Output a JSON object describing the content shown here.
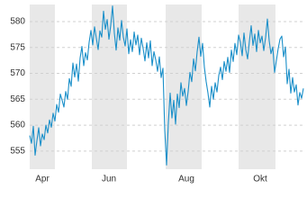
{
  "chart_data": {
    "type": "line",
    "categories": [
      null,
      null,
      null,
      null,
      null,
      null,
      null,
      "Apr",
      null,
      null,
      null,
      null,
      null,
      null,
      null,
      null,
      null,
      null,
      null,
      null,
      null,
      null,
      null,
      null,
      null,
      null,
      null,
      null,
      null,
      null,
      null,
      null,
      null,
      null,
      null,
      null,
      null,
      null,
      null,
      null,
      null,
      null,
      null,
      null,
      "Jun",
      null,
      null,
      null,
      null,
      null,
      null,
      null,
      null,
      null,
      null,
      null,
      null,
      null,
      null,
      null,
      null,
      null,
      null,
      null,
      null,
      null,
      null,
      null,
      null,
      null,
      null,
      null,
      null,
      null,
      null,
      null,
      null,
      null,
      null,
      null,
      null,
      null,
      null,
      null,
      null,
      null,
      null,
      "Aug",
      null,
      null,
      null,
      null,
      null,
      null,
      null,
      null,
      null,
      null,
      null,
      null,
      null,
      null,
      null,
      null,
      null,
      null,
      null,
      null,
      null,
      null,
      null,
      null,
      null,
      null,
      null,
      null,
      null,
      null,
      null,
      null,
      null,
      null,
      null,
      null,
      null,
      null,
      null,
      null,
      "Okt",
      null,
      null,
      null,
      null,
      null,
      null,
      null,
      null,
      null,
      null,
      null,
      null,
      null,
      null,
      null,
      null,
      null,
      null,
      null,
      null,
      null,
      null,
      null,
      null
    ],
    "series": [
      {
        "color": "#1a8fc9",
        "values": [
          558,
          556.5,
          559.8,
          554.2,
          557,
          559.5,
          556,
          558.3,
          557.2,
          560,
          558.5,
          561,
          559.6,
          562.3,
          560.8,
          564,
          562.5,
          566,
          564.8,
          563.5,
          566.5,
          565,
          569,
          567.5,
          572,
          569.3,
          571.8,
          568.5,
          573,
          575.2,
          571.5,
          574,
          572.6,
          576,
          578.3,
          575.5,
          579,
          576.8,
          574.6,
          578.2,
          577,
          582,
          578.5,
          580.4,
          576.6,
          579.3,
          583,
          577.8,
          574.5,
          578.8,
          576.4,
          580.2,
          577,
          575.3,
          578.6,
          573.8,
          576.5,
          574.2,
          578,
          575.5,
          577.4,
          573.6,
          576.8,
          574.8,
          572.4,
          575.9,
          573,
          576.3,
          571.5,
          574.2,
          572.6,
          570.4,
          573.2,
          569.2,
          571,
          559,
          552.3,
          560.5,
          566.2,
          561.4,
          564.8,
          560.2,
          566,
          563.4,
          568.2,
          565.6,
          567.1,
          563.8,
          566.5,
          570.2,
          568.4,
          572.8,
          570.5,
          574.2,
          577,
          573.3,
          575.8,
          571.2,
          568.4,
          566.2,
          563.5,
          567.5,
          565,
          568.2,
          566.4,
          569.6,
          571.2,
          568.8,
          572.3,
          570.4,
          573.1,
          570.2,
          574.5,
          572.3,
          575.8,
          573.6,
          577.4,
          576,
          573.4,
          577.8,
          574.6,
          572.8,
          576.2,
          579.2,
          575.4,
          577.6,
          574.2,
          578.3,
          575.9,
          577.2,
          574.4,
          576.9,
          580.5,
          576.3,
          573.8,
          575.1,
          570.2,
          572.5,
          574.8,
          576.6,
          577.2,
          573.2,
          575.1,
          568,
          570.8,
          566.2,
          569.2,
          566.4,
          567.8,
          563.9,
          566.3,
          565.2,
          567.1
        ]
      }
    ],
    "ylim": [
      551.5,
      583.3
    ],
    "yticks": [
      555,
      560,
      565,
      570,
      575,
      580
    ],
    "grid": true
  }
}
